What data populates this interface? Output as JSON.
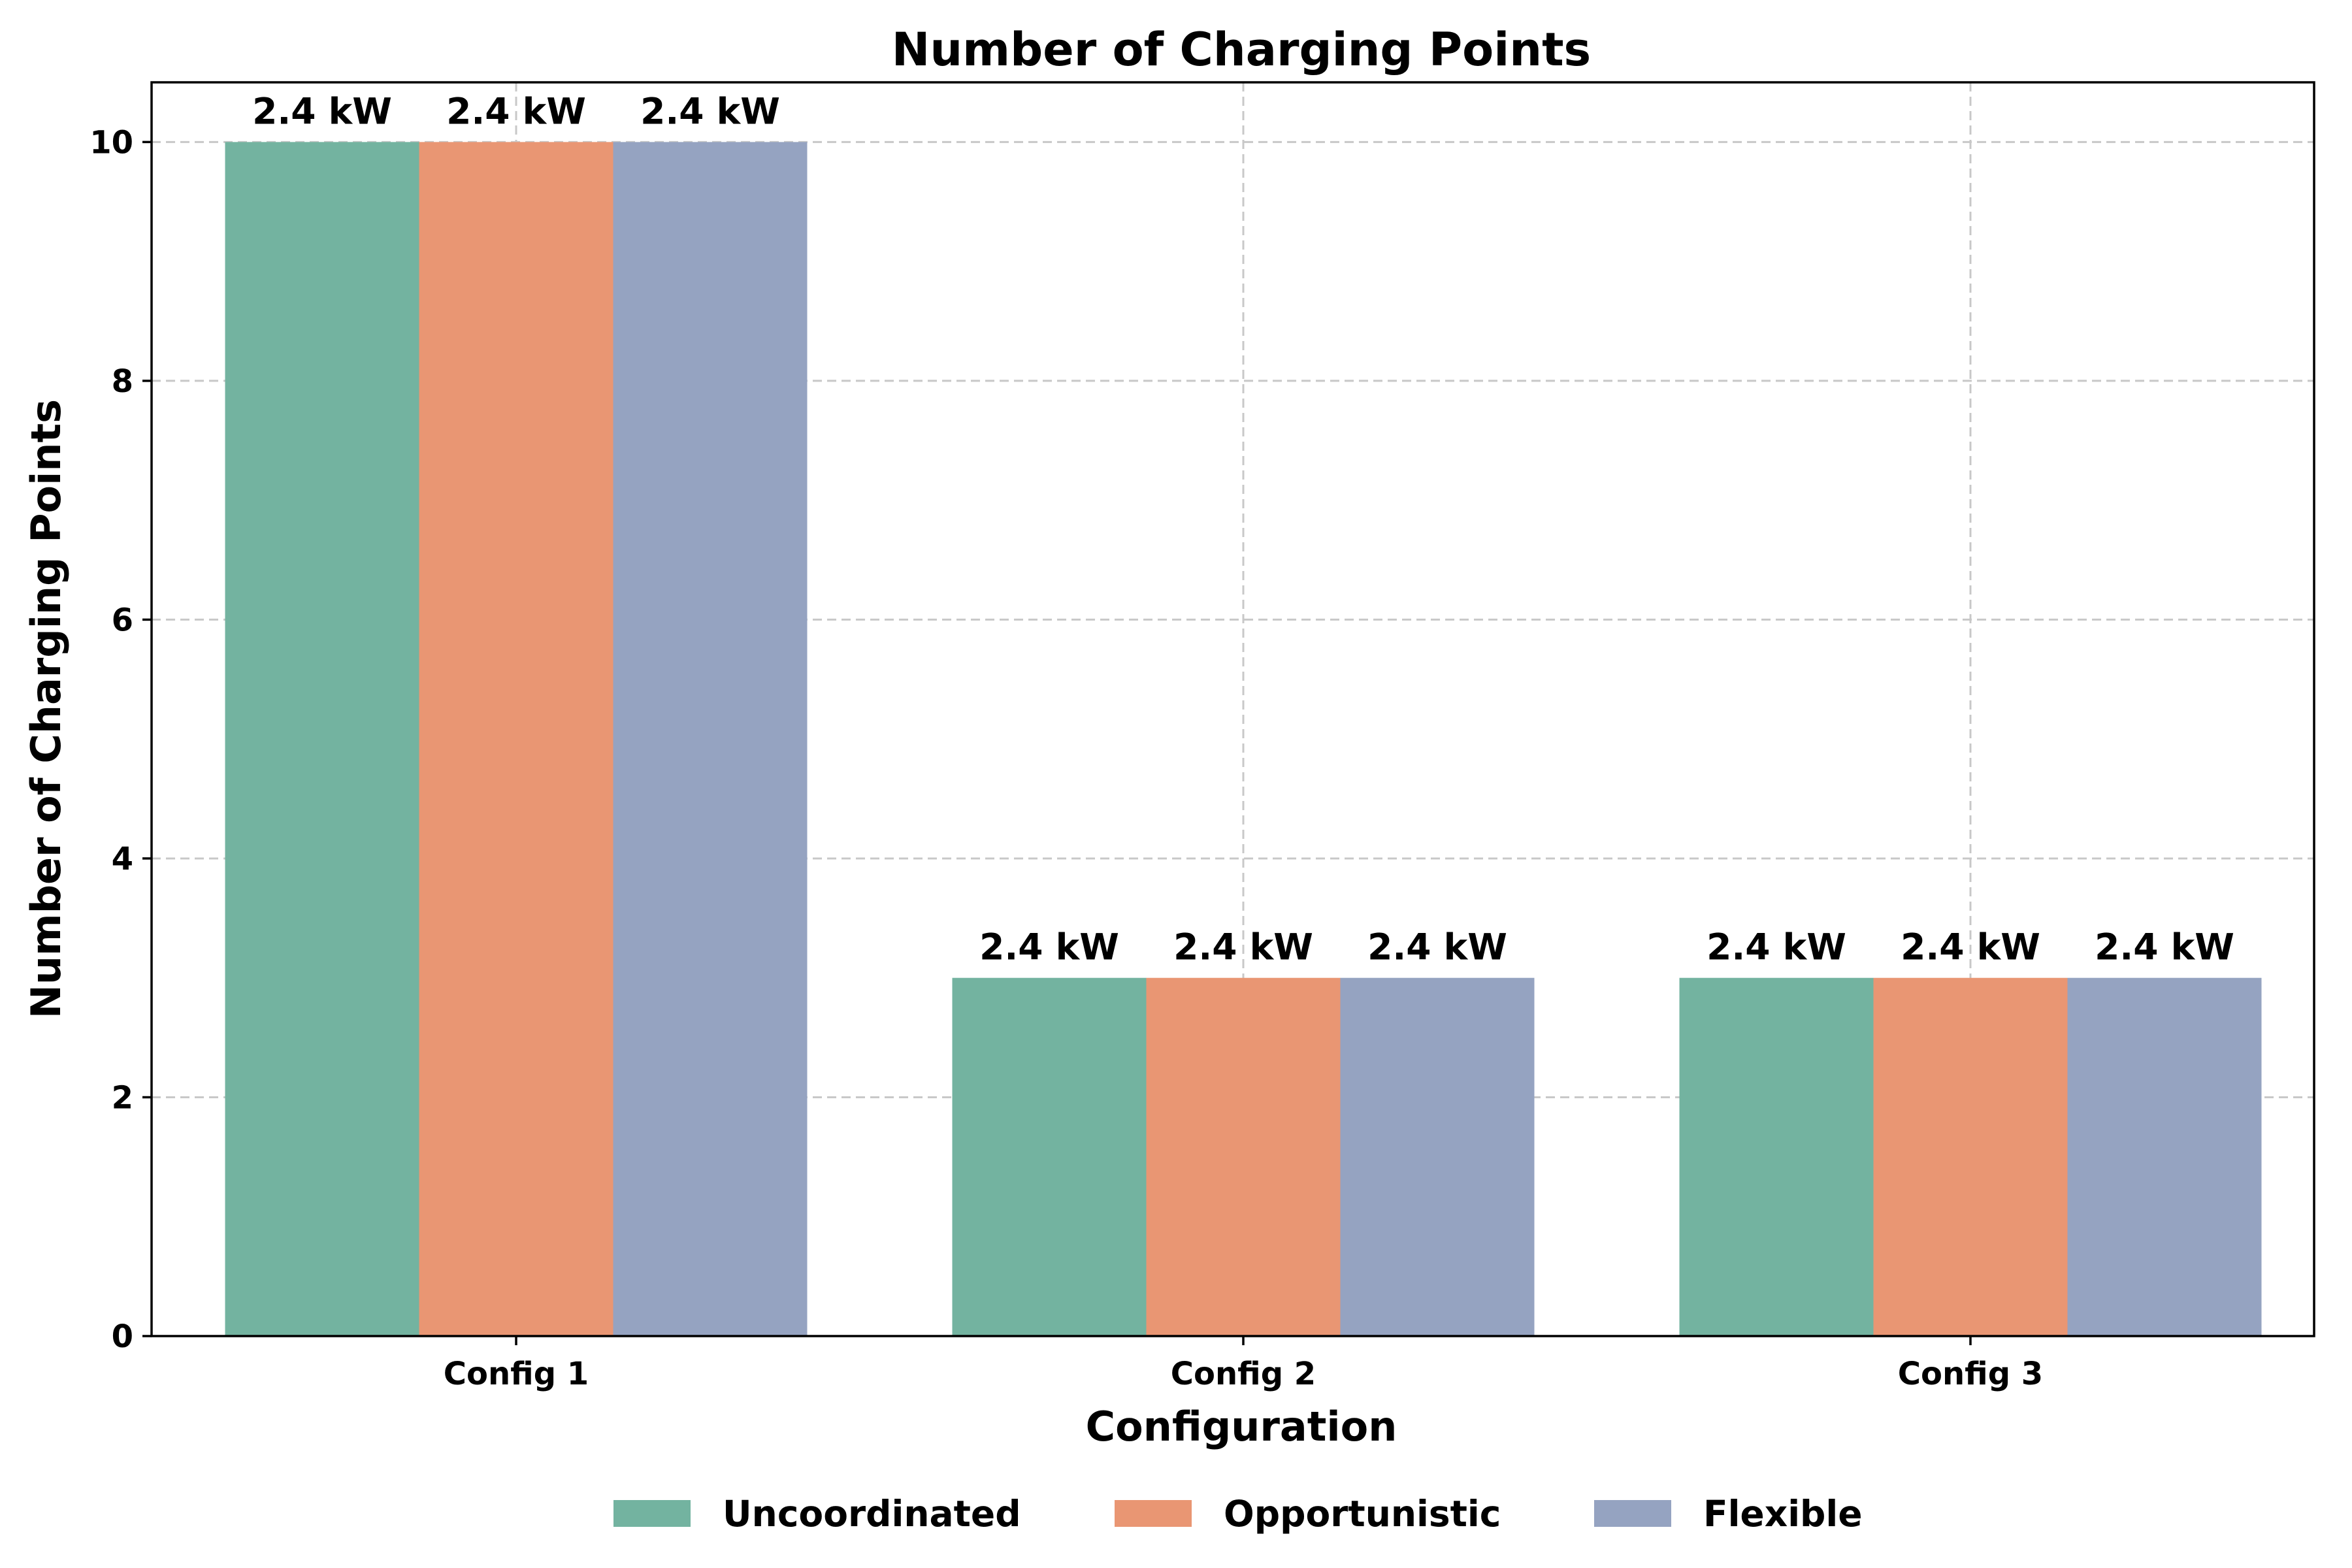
{
  "chart_data": {
    "type": "bar",
    "title": "Number of Charging Points",
    "xlabel": "Configuration",
    "ylabel": "Number of Charging Points",
    "categories": [
      "Config 1",
      "Config 2",
      "Config 3"
    ],
    "series": [
      {
        "name": "Uncoordinated",
        "color": "#73b3a0",
        "values": [
          10,
          3,
          3
        ],
        "labels": [
          "2.4 kW",
          "2.4 kW",
          "2.4 kW"
        ]
      },
      {
        "name": "Opportunistic",
        "color": "#e99673",
        "values": [
          10,
          3,
          3
        ],
        "labels": [
          "2.4 kW",
          "2.4 kW",
          "2.4 kW"
        ]
      },
      {
        "name": "Flexible",
        "color": "#95a3c1",
        "values": [
          10,
          3,
          3
        ],
        "labels": [
          "2.4 kW",
          "2.4 kW",
          "2.4 kW"
        ]
      }
    ],
    "ylim": [
      0,
      10.5
    ],
    "yticks": [
      0,
      2,
      4,
      6,
      8,
      10
    ],
    "grid": true,
    "legend_position": "bottom-center"
  }
}
